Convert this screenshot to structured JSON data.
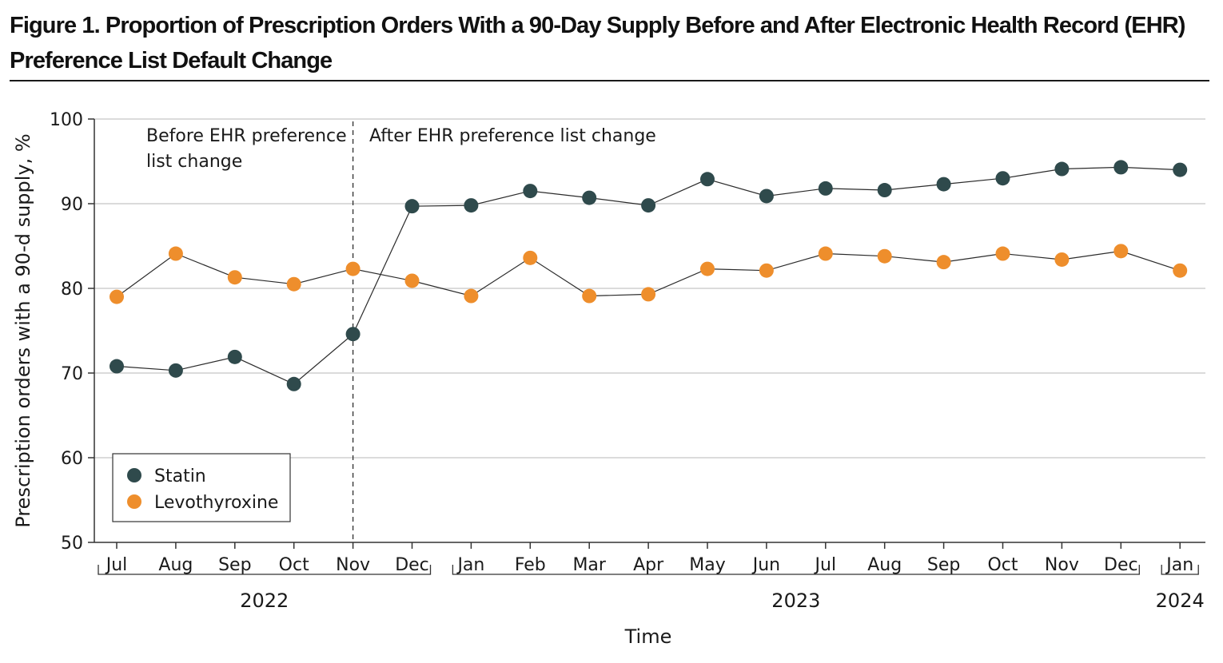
{
  "figure": {
    "title": "Figure 1. Proportion of Prescription Orders With a 90-Day Supply Before and After Electronic Health Record (EHR) Preference List Default Change"
  },
  "colors": {
    "statin": "#2f4a4c",
    "levothyroxine": "#ee8e2c",
    "grid": "#cfcfcf",
    "axis": "#333333"
  },
  "chart_data": {
    "type": "line",
    "title": "Figure 1. Proportion of Prescription Orders With a 90-Day Supply Before and After Electronic Health Record (EHR) Preference List Default Change",
    "xlabel": "Time",
    "ylabel": "Prescription orders with a 90-d supply, %",
    "ylim": [
      50,
      100
    ],
    "yticks": [
      50,
      60,
      70,
      80,
      90,
      100
    ],
    "grid": true,
    "categories": [
      "Jul",
      "Aug",
      "Sep",
      "Oct",
      "Nov",
      "Dec",
      "Jan",
      "Feb",
      "Mar",
      "Apr",
      "May",
      "Jun",
      "Jul",
      "Aug",
      "Sep",
      "Oct",
      "Nov",
      "Dec",
      "Jan"
    ],
    "year_groups": [
      {
        "label": "2022",
        "start": 0,
        "end": 5
      },
      {
        "label": "2023",
        "start": 6,
        "end": 17
      },
      {
        "label": "2024",
        "start": 18,
        "end": 18
      }
    ],
    "series": [
      {
        "name": "Statin",
        "color": "#2f4a4c",
        "values": [
          70.8,
          70.3,
          71.9,
          68.7,
          74.6,
          89.7,
          89.8,
          91.5,
          90.7,
          89.8,
          92.9,
          90.9,
          91.8,
          91.6,
          92.3,
          93.0,
          94.1,
          94.3,
          94.0
        ]
      },
      {
        "name": "Levothyroxine",
        "color": "#ee8e2c",
        "values": [
          79.0,
          84.1,
          81.3,
          80.5,
          82.3,
          80.9,
          79.1,
          83.6,
          79.1,
          79.3,
          82.3,
          82.1,
          84.1,
          83.8,
          83.1,
          84.1,
          83.4,
          84.4,
          82.1
        ]
      }
    ],
    "intervention": {
      "index": 4,
      "before_label_line1": "Before EHR preference",
      "before_label_line2": "list change",
      "after_label": "After EHR preference list change"
    },
    "legend": {
      "placement": "bottom-left",
      "entries": [
        "Statin",
        "Levothyroxine"
      ]
    }
  }
}
